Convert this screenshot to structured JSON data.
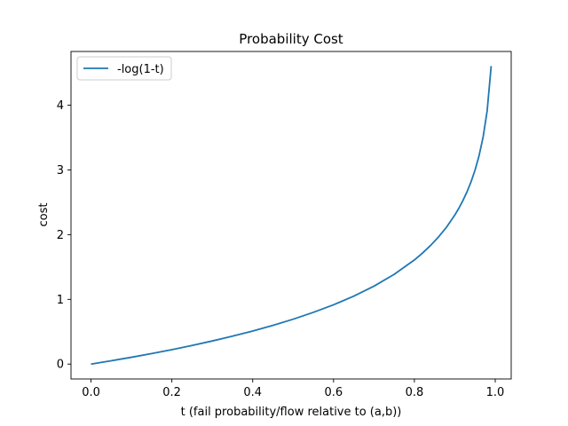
{
  "chart_data": {
    "type": "line",
    "title": "Probability Cost",
    "xlabel": "t (fail probability/flow relative to (a,b))",
    "ylabel": "cost",
    "xlim": [
      -0.0495,
      1.0395
    ],
    "ylim": [
      -0.23,
      4.83
    ],
    "xticks": [
      {
        "value": 0.0,
        "label": "0.0"
      },
      {
        "value": 0.2,
        "label": "0.2"
      },
      {
        "value": 0.4,
        "label": "0.4"
      },
      {
        "value": 0.6,
        "label": "0.6"
      },
      {
        "value": 0.8,
        "label": "0.8"
      },
      {
        "value": 1.0,
        "label": "1.0"
      }
    ],
    "yticks": [
      {
        "value": 0,
        "label": "0"
      },
      {
        "value": 1,
        "label": "1"
      },
      {
        "value": 2,
        "label": "2"
      },
      {
        "value": 3,
        "label": "3"
      },
      {
        "value": 4,
        "label": "4"
      }
    ],
    "grid": false,
    "legend_position": "upper-left",
    "series": [
      {
        "name": "-log(1-t)",
        "color": "#1f77b4",
        "x": [
          0.0,
          0.05,
          0.1,
          0.15,
          0.2,
          0.25,
          0.3,
          0.35,
          0.4,
          0.45,
          0.5,
          0.55,
          0.6,
          0.65,
          0.7,
          0.75,
          0.8,
          0.82,
          0.84,
          0.86,
          0.88,
          0.9,
          0.91,
          0.92,
          0.93,
          0.94,
          0.95,
          0.96,
          0.97,
          0.98,
          0.99
        ],
        "y": [
          0.0,
          0.051,
          0.105,
          0.163,
          0.223,
          0.288,
          0.357,
          0.431,
          0.511,
          0.598,
          0.693,
          0.799,
          0.916,
          1.05,
          1.204,
          1.386,
          1.609,
          1.715,
          1.833,
          1.966,
          2.12,
          2.303,
          2.408,
          2.526,
          2.659,
          2.813,
          2.996,
          3.219,
          3.507,
          3.912,
          4.605
        ]
      }
    ]
  }
}
